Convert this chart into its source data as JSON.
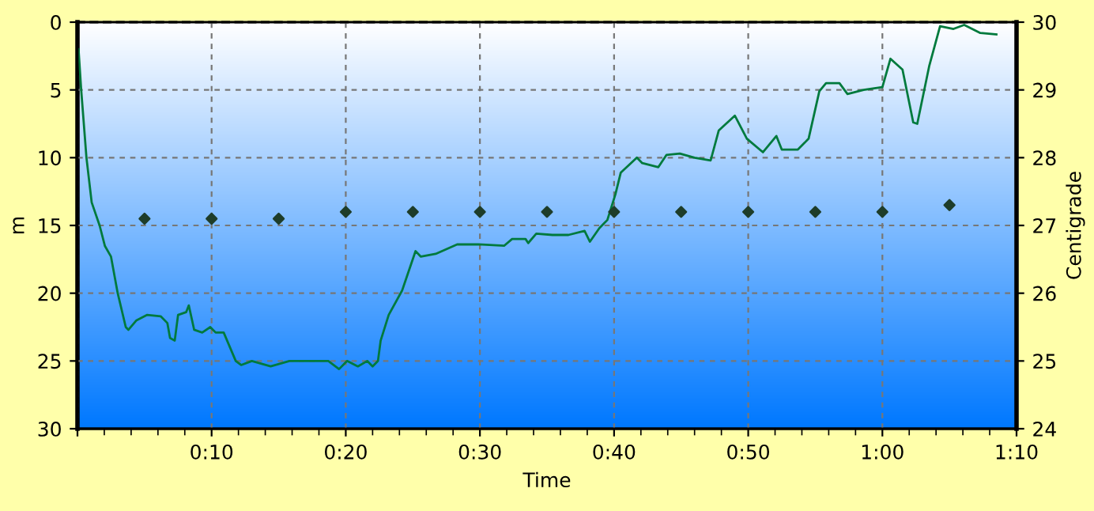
{
  "chart_data": {
    "type": "line",
    "xlabel": "Time",
    "ylabel": "m",
    "y2label": "Centigrade",
    "xlim": [
      0,
      70
    ],
    "xticks": [
      {
        "value": 0,
        "label": null
      },
      {
        "value": 10,
        "label": "0:10"
      },
      {
        "value": 20,
        "label": "0:20"
      },
      {
        "value": 30,
        "label": "0:30"
      },
      {
        "value": 40,
        "label": "0:40"
      },
      {
        "value": 50,
        "label": "0:50"
      },
      {
        "value": 60,
        "label": "1:00"
      },
      {
        "value": 70,
        "label": "1:10"
      }
    ],
    "ylim": [
      30,
      0
    ],
    "yticks": [
      0,
      5,
      10,
      15,
      20,
      25,
      30
    ],
    "y2lim": [
      24,
      30
    ],
    "y2ticks": [
      24,
      25,
      26,
      27,
      28,
      29,
      30
    ],
    "grid": true,
    "legend": false,
    "series": [
      {
        "color": "#007a3d",
        "marker": "none",
        "line_style": "solid",
        "x": [
          0.08,
          0.27,
          0.67,
          1.06,
          1.65,
          2.04,
          2.5,
          3.0,
          3.6,
          3.8,
          4.4,
          5.2,
          6.2,
          6.7,
          6.9,
          7.25,
          7.5,
          8.1,
          8.3,
          8.7,
          9.3,
          9.9,
          10.3,
          10.9,
          11.8,
          12.2,
          13.0,
          14.4,
          15.8,
          17.7,
          18.7,
          19.5,
          20.1,
          20.9,
          21.6,
          22.0,
          22.4,
          22.6,
          23.2,
          24.2,
          25.2,
          25.6,
          26.7,
          28.3,
          29.9,
          31.8,
          32.4,
          33.4,
          33.6,
          34.2,
          35.4,
          36.6,
          37.8,
          38.2,
          38.9,
          39.5,
          40.1,
          40.5,
          41.7,
          42.1,
          43.3,
          43.9,
          44.9,
          46.0,
          47.2,
          47.8,
          49.0,
          49.9,
          51.1,
          52.1,
          52.5,
          53.7,
          54.5,
          55.3,
          55.8,
          56.8,
          57.4,
          58.6,
          60.0,
          60.6,
          61.5,
          62.3,
          62.6,
          63.5,
          64.3,
          65.3,
          66.1,
          67.3,
          68.5
        ],
        "values": [
          2.0,
          4.9,
          10.0,
          13.3,
          15.0,
          16.5,
          17.3,
          20.0,
          22.5,
          22.7,
          22.0,
          21.6,
          21.7,
          22.2,
          23.3,
          23.5,
          21.6,
          21.4,
          20.9,
          22.7,
          22.9,
          22.5,
          22.9,
          22.9,
          25.0,
          25.3,
          25.0,
          25.4,
          25.0,
          25.0,
          25.0,
          25.6,
          25.0,
          25.4,
          25.0,
          25.4,
          25.0,
          23.5,
          21.6,
          19.8,
          16.9,
          17.3,
          17.1,
          16.4,
          16.4,
          16.5,
          16.0,
          16.0,
          16.3,
          15.6,
          15.7,
          15.7,
          15.4,
          16.2,
          15.2,
          14.6,
          12.7,
          11.1,
          10.0,
          10.4,
          10.7,
          9.8,
          9.7,
          10.0,
          10.2,
          8.0,
          6.9,
          8.6,
          9.6,
          8.4,
          9.4,
          9.4,
          8.6,
          5.1,
          4.5,
          4.5,
          5.3,
          5.0,
          4.8,
          2.7,
          3.5,
          7.4,
          7.5,
          3.2,
          0.3,
          0.5,
          0.2,
          0.8,
          0.9
        ]
      },
      {
        "type": "scatter",
        "axis": "y2",
        "color": "#1e3d2a",
        "marker": "diamond",
        "x": [
          5,
          10,
          15,
          20,
          25,
          30,
          35,
          40,
          45,
          50,
          55,
          60,
          65
        ],
        "values": [
          27.1,
          27.1,
          27.1,
          27.2,
          27.2,
          27.2,
          27.2,
          27.2,
          27.2,
          27.2,
          27.2,
          27.2,
          27.3
        ]
      }
    ]
  }
}
